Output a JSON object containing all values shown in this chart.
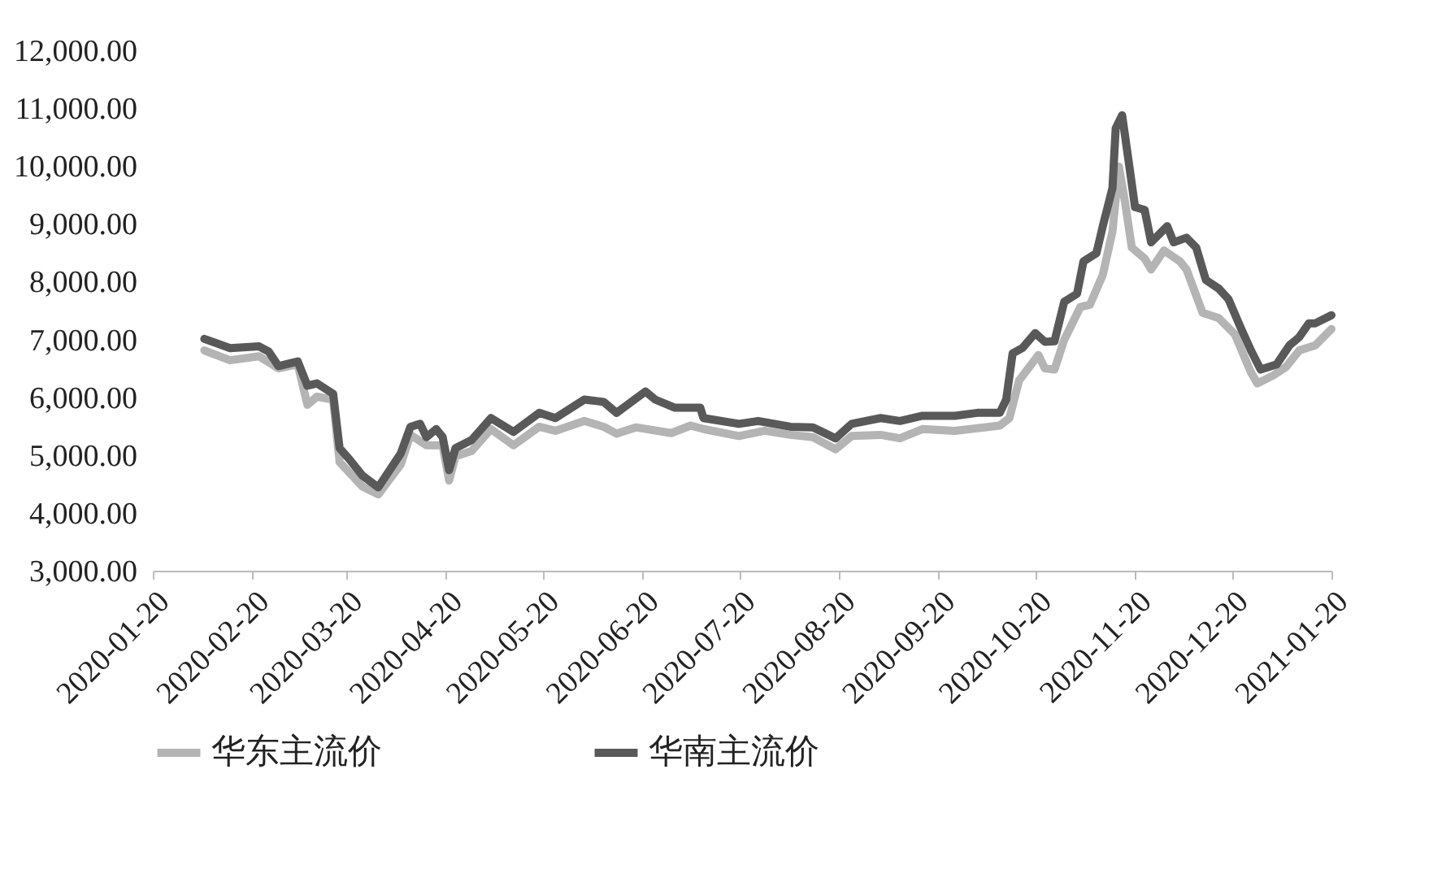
{
  "chart_data": {
    "type": "line",
    "legend": "bottom",
    "grid": false,
    "xlim": [
      "2020-01-20",
      "2021-01-20"
    ],
    "xticks": [
      "2020-01-20",
      "2020-02-20",
      "2020-03-20",
      "2020-04-20",
      "2020-05-20",
      "2020-06-20",
      "2020-07-20",
      "2020-08-20",
      "2020-09-20",
      "2020-10-20",
      "2020-11-20",
      "2020-12-20",
      "2021-01-20"
    ],
    "ylim": [
      3000,
      12000
    ],
    "yticks": [
      {
        "value": 3000,
        "label": "3,000.00"
      },
      {
        "value": 4000,
        "label": "4,000.00"
      },
      {
        "value": 5000,
        "label": "5,000.00"
      },
      {
        "value": 6000,
        "label": "6,000.00"
      },
      {
        "value": 7000,
        "label": "7,000.00"
      },
      {
        "value": 8000,
        "label": "8,000.00"
      },
      {
        "value": 9000,
        "label": "9,000.00"
      },
      {
        "value": 10000,
        "label": "10,000.00"
      },
      {
        "value": 11000,
        "label": "11,000.00"
      },
      {
        "value": 12000,
        "label": "12,000.00"
      }
    ],
    "series": [
      {
        "name": "华东主流价",
        "color": "#b4b4b4",
        "x": [
          "2020-02-05",
          "2020-02-13",
          "2020-02-22",
          "2020-02-28",
          "2020-03-05",
          "2020-03-08",
          "2020-03-11",
          "2020-03-16",
          "2020-03-18",
          "2020-03-25",
          "2020-03-30",
          "2020-04-06",
          "2020-04-09",
          "2020-04-14",
          "2020-04-19",
          "2020-04-21",
          "2020-04-23",
          "2020-04-28",
          "2020-05-04",
          "2020-05-11",
          "2020-05-19",
          "2020-05-24",
          "2020-06-02",
          "2020-06-08",
          "2020-06-12",
          "2020-06-18",
          "2020-06-29",
          "2020-07-05",
          "2020-07-09",
          "2020-07-20",
          "2020-07-28",
          "2020-08-05",
          "2020-08-12",
          "2020-08-19",
          "2020-08-24",
          "2020-09-02",
          "2020-09-08",
          "2020-09-15",
          "2020-09-25",
          "2020-10-09",
          "2020-10-12",
          "2020-10-15",
          "2020-10-21",
          "2020-10-23",
          "2020-10-26",
          "2020-10-29",
          "2020-11-03",
          "2020-11-06",
          "2020-11-10",
          "2020-11-13",
          "2020-11-15",
          "2020-11-17",
          "2020-11-19",
          "2020-11-23",
          "2020-11-25",
          "2020-11-29",
          "2020-12-04",
          "2020-12-06",
          "2020-12-11",
          "2020-12-16",
          "2020-12-21",
          "2020-12-26",
          "2020-12-28",
          "2021-01-02",
          "2021-01-06",
          "2021-01-10",
          "2021-01-15",
          "2021-01-20"
        ],
        "values": [
          6810,
          6640,
          6710,
          6500,
          6570,
          5870,
          6010,
          5960,
          4880,
          4460,
          4320,
          4840,
          5350,
          5170,
          5170,
          4560,
          4980,
          5070,
          5450,
          5170,
          5490,
          5420,
          5590,
          5490,
          5370,
          5480,
          5380,
          5510,
          5450,
          5330,
          5420,
          5350,
          5310,
          5100,
          5330,
          5350,
          5290,
          5450,
          5420,
          5510,
          5640,
          6290,
          6730,
          6500,
          6480,
          6990,
          7560,
          7600,
          8120,
          8870,
          9990,
          9340,
          8590,
          8400,
          8210,
          8540,
          8350,
          8210,
          7460,
          7370,
          7090,
          6430,
          6240,
          6380,
          6530,
          6810,
          6900,
          7180
        ]
      },
      {
        "name": "华南主流价",
        "color": "#595959",
        "x": [
          "2020-02-05",
          "2020-02-13",
          "2020-02-22",
          "2020-02-25",
          "2020-02-28",
          "2020-03-05",
          "2020-03-08",
          "2020-03-11",
          "2020-03-16",
          "2020-03-18",
          "2020-03-21",
          "2020-03-25",
          "2020-03-30",
          "2020-04-06",
          "2020-04-09",
          "2020-04-12",
          "2020-04-14",
          "2020-04-17",
          "2020-04-19",
          "2020-04-21",
          "2020-04-23",
          "2020-04-28",
          "2020-05-04",
          "2020-05-11",
          "2020-05-19",
          "2020-05-24",
          "2020-06-02",
          "2020-06-08",
          "2020-06-12",
          "2020-06-21",
          "2020-06-24",
          "2020-06-30",
          "2020-07-08",
          "2020-07-09",
          "2020-07-20",
          "2020-07-26",
          "2020-08-05",
          "2020-08-12",
          "2020-08-19",
          "2020-08-24",
          "2020-09-02",
          "2020-09-08",
          "2020-09-15",
          "2020-09-25",
          "2020-10-02",
          "2020-10-09",
          "2020-10-11",
          "2020-10-13",
          "2020-10-16",
          "2020-10-20",
          "2020-10-23",
          "2020-10-26",
          "2020-10-29",
          "2020-11-02",
          "2020-11-04",
          "2020-11-08",
          "2020-11-10",
          "2020-11-13",
          "2020-11-14",
          "2020-11-16",
          "2020-11-18",
          "2020-11-20",
          "2020-11-23",
          "2020-11-25",
          "2020-11-30",
          "2020-12-02",
          "2020-12-06",
          "2020-12-09",
          "2020-12-12",
          "2020-12-16",
          "2020-12-19",
          "2020-12-23",
          "2020-12-26",
          "2020-12-29",
          "2021-01-03",
          "2021-01-07",
          "2021-01-10",
          "2021-01-13",
          "2021-01-15",
          "2021-01-20"
        ],
        "values": [
          7010,
          6850,
          6880,
          6790,
          6540,
          6620,
          6200,
          6240,
          6060,
          5120,
          4930,
          4650,
          4440,
          5030,
          5490,
          5540,
          5310,
          5450,
          5310,
          4740,
          5120,
          5260,
          5640,
          5400,
          5730,
          5640,
          5960,
          5920,
          5730,
          6100,
          5960,
          5820,
          5820,
          5640,
          5540,
          5590,
          5490,
          5480,
          5290,
          5540,
          5640,
          5590,
          5680,
          5680,
          5730,
          5730,
          5960,
          6760,
          6850,
          7110,
          6960,
          6970,
          7650,
          7790,
          8350,
          8490,
          8960,
          9620,
          10650,
          10880,
          10090,
          9290,
          9240,
          8680,
          8960,
          8680,
          8760,
          8590,
          8030,
          7880,
          7700,
          7180,
          6810,
          6480,
          6570,
          6900,
          7040,
          7280,
          7280,
          7420
        ]
      }
    ]
  }
}
